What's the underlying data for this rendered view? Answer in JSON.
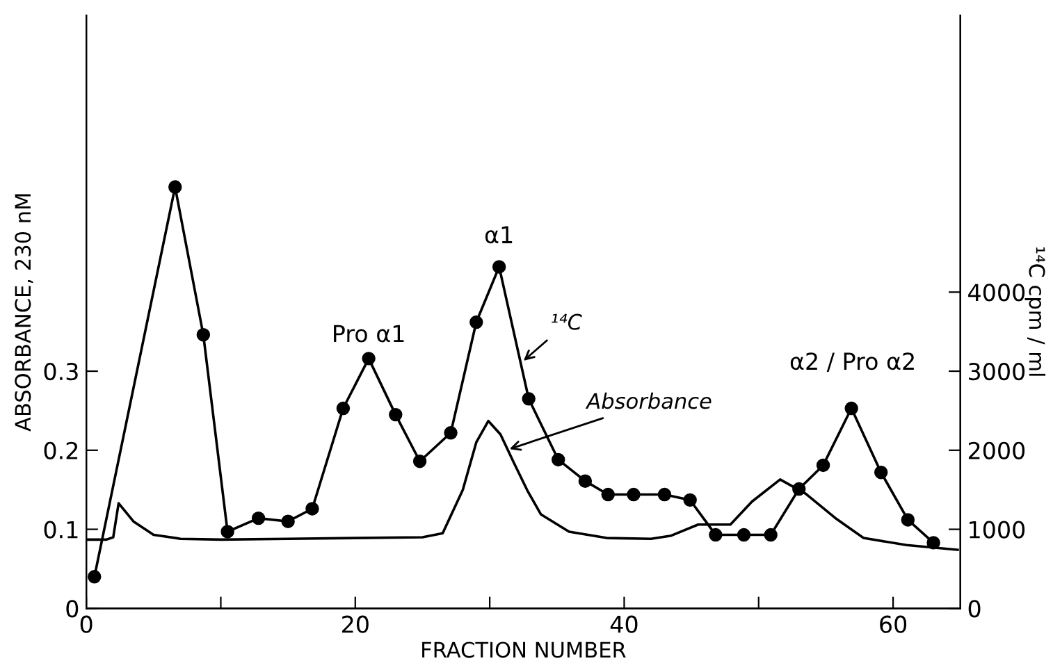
{
  "chart_data": {
    "type": "line",
    "xlabel": "FRACTION NUMBER",
    "ylabel": "ABSORBANCE, 230 nM",
    "y2label": "¹⁴C cpm / ml",
    "xlim": [
      0,
      65
    ],
    "xticks": [
      0,
      {
        "value": 10,
        "label": null
      },
      20,
      {
        "value": 30,
        "label": null
      },
      40,
      {
        "value": 50,
        "label": null
      },
      60
    ],
    "ylim": [
      0,
      0.75
    ],
    "yticks": [
      0,
      0.1,
      0.2,
      0.3
    ],
    "y2lim": [
      0,
      7500
    ],
    "y2ticks": [
      0,
      1000,
      2000,
      3000,
      4000
    ],
    "grid": false,
    "legend": false,
    "line_style": "solid",
    "series": [
      {
        "color": "#000000",
        "axis": "y",
        "marker": "none",
        "x": [
          0,
          1.5,
          2.0,
          2.4,
          3.5,
          5,
          7,
          10,
          15,
          20,
          25,
          26.5,
          28,
          29,
          29.9,
          30.8,
          31.8,
          32.8,
          33.8,
          35.9,
          38.7,
          42,
          43.5,
          45.5,
          47.9,
          49.5,
          51.6,
          53.5,
          55.8,
          57.8,
          61,
          64.8
        ],
        "values": [
          0.087,
          0.087,
          0.09,
          0.133,
          0.11,
          0.093,
          0.088,
          0.087,
          0.088,
          0.089,
          0.09,
          0.095,
          0.15,
          0.21,
          0.237,
          0.22,
          0.184,
          0.149,
          0.119,
          0.097,
          0.089,
          0.088,
          0.092,
          0.106,
          0.106,
          0.135,
          0.163,
          0.145,
          0.113,
          0.089,
          0.08,
          0.074
        ]
      },
      {
        "color": "#000000",
        "axis": "y2",
        "marker": "circle",
        "x": [
          0.6,
          6.6,
          8.7,
          10.5,
          12.8,
          15,
          16.8,
          19.1,
          21,
          23,
          24.8,
          27.1,
          29,
          30.7,
          32.9,
          35.1,
          37.1,
          38.8,
          40.7,
          43,
          44.9,
          46.8,
          48.9,
          50.9,
          53,
          54.8,
          56.9,
          59.1,
          61.1,
          63
        ],
        "values": [
          400,
          5330,
          3460,
          970,
          1140,
          1100,
          1260,
          2530,
          3160,
          2450,
          1860,
          2220,
          3620,
          4320,
          2650,
          1880,
          1610,
          1440,
          1440,
          1440,
          1370,
          930,
          930,
          930,
          1510,
          1810,
          2530,
          1720,
          1120,
          830
        ]
      }
    ],
    "annotations": [
      "Pro α1",
      "α1",
      "α2 / Pro α2",
      {
        "text": "¹⁴C",
        "x": 32.3,
        "y": 0.31
      },
      {
        "text": "Absorbance",
        "x": 31.2,
        "y": 0.2
      }
    ]
  }
}
